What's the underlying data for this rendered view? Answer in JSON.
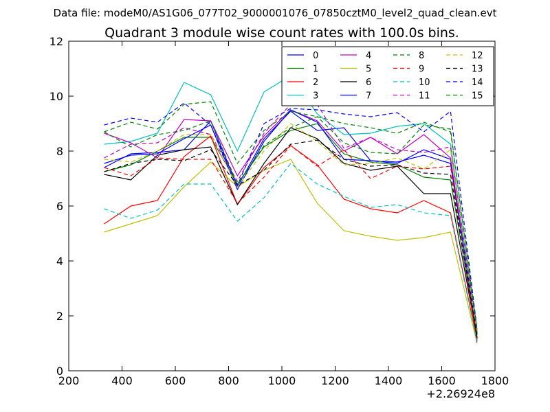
{
  "chart_data": {
    "type": "line",
    "suptitle": "Data file: modeM0/AS1G06_077T02_9000001076_07850cztM0_level2_quad_clean.evt",
    "title": "Quadrant 3 module wise count rates with 100.0s bins.",
    "xlabel": "",
    "ylabel": "",
    "x_offset_label": "+2.26924e8",
    "xlim": [
      200,
      1800
    ],
    "ylim": [
      0,
      12
    ],
    "xticks": [
      200,
      400,
      600,
      800,
      1000,
      1200,
      1400,
      1600,
      1800
    ],
    "yticks": [
      0,
      2,
      4,
      6,
      8,
      10,
      12
    ],
    "x": [
      333,
      433,
      533,
      633,
      733,
      833,
      933,
      1033,
      1133,
      1233,
      1333,
      1433,
      1533,
      1633,
      1733
    ],
    "series": [
      {
        "name": "0",
        "color": "#0000ff",
        "dash": "solid",
        "values": [
          7.4,
          7.9,
          7.95,
          8.05,
          9.1,
          6.7,
          8.45,
          9.45,
          8.75,
          8.85,
          7.65,
          7.55,
          8.05,
          7.7,
          1.3
        ]
      },
      {
        "name": "1",
        "color": "#008000",
        "dash": "solid",
        "values": [
          7.25,
          7.5,
          8.0,
          8.5,
          8.5,
          6.8,
          8.15,
          8.75,
          9.0,
          7.9,
          7.6,
          7.5,
          7.05,
          6.95,
          1.2
        ]
      },
      {
        "name": "2",
        "color": "#ff0000",
        "dash": "solid",
        "values": [
          5.35,
          6.0,
          6.2,
          7.8,
          8.55,
          6.05,
          7.4,
          8.2,
          7.5,
          6.25,
          5.9,
          5.75,
          6.2,
          5.75,
          1.1
        ]
      },
      {
        "name": "3",
        "color": "#00bfbf",
        "dash": "solid",
        "values": [
          8.25,
          8.35,
          8.65,
          10.5,
          10.05,
          8.0,
          10.15,
          10.75,
          9.35,
          8.6,
          8.65,
          8.9,
          9.0,
          8.25,
          1.25
        ]
      },
      {
        "name": "4",
        "color": "#bf00bf",
        "dash": "solid",
        "values": [
          8.65,
          8.3,
          7.75,
          9.15,
          9.1,
          7.1,
          8.55,
          9.5,
          9.1,
          8.0,
          8.5,
          7.9,
          8.6,
          7.75,
          1.15
        ]
      },
      {
        "name": "5",
        "color": "#bfbf00",
        "dash": "solid",
        "values": [
          5.05,
          5.35,
          5.65,
          6.7,
          7.6,
          6.7,
          7.3,
          7.7,
          6.1,
          5.1,
          4.9,
          4.75,
          4.85,
          5.05,
          1.0
        ]
      },
      {
        "name": "6",
        "color": "#000000",
        "dash": "solid",
        "values": [
          7.15,
          6.95,
          7.85,
          8.05,
          8.15,
          6.05,
          7.55,
          8.85,
          8.45,
          7.55,
          7.3,
          7.45,
          6.45,
          6.45,
          1.2
        ]
      },
      {
        "name": "7",
        "color": "#0000ff",
        "dash": "solid",
        "values": [
          7.55,
          7.85,
          7.9,
          8.45,
          8.95,
          6.6,
          8.35,
          9.5,
          9.05,
          7.7,
          7.65,
          7.6,
          7.85,
          7.55,
          1.35
        ]
      },
      {
        "name": "8",
        "color": "#008000",
        "dash": "dashed",
        "values": [
          8.7,
          9.05,
          8.8,
          9.7,
          9.8,
          7.55,
          8.75,
          9.45,
          9.25,
          9.0,
          8.85,
          8.65,
          9.05,
          8.7,
          1.5
        ]
      },
      {
        "name": "9",
        "color": "#ff0000",
        "dash": "dashed",
        "values": [
          7.4,
          7.1,
          7.75,
          7.7,
          7.7,
          6.1,
          7.05,
          8.2,
          7.45,
          8.05,
          7.0,
          7.45,
          7.35,
          7.45,
          0.95
        ]
      },
      {
        "name": "10",
        "color": "#00bfbf",
        "dash": "dashed",
        "values": [
          5.9,
          5.55,
          5.85,
          6.8,
          6.8,
          5.45,
          6.3,
          7.55,
          6.8,
          6.35,
          5.95,
          6.05,
          5.75,
          5.65,
          1.05
        ]
      },
      {
        "name": "11",
        "color": "#bf00bf",
        "dash": "dashed",
        "values": [
          7.75,
          8.25,
          8.3,
          8.85,
          8.6,
          6.9,
          8.65,
          9.7,
          9.7,
          8.1,
          8.5,
          8.05,
          7.95,
          8.15,
          1.4
        ]
      },
      {
        "name": "12",
        "color": "#bfbf00",
        "dash": "dashed",
        "values": [
          7.7,
          7.6,
          8.0,
          8.6,
          8.6,
          6.7,
          8.0,
          9.0,
          8.35,
          7.5,
          7.55,
          7.75,
          7.35,
          8.05,
          1.3
        ]
      },
      {
        "name": "13",
        "color": "#000000",
        "dash": "dashed",
        "values": [
          7.25,
          7.55,
          7.7,
          7.65,
          8.05,
          6.75,
          7.3,
          8.25,
          8.4,
          7.7,
          7.45,
          7.5,
          7.2,
          7.15,
          1.25
        ]
      },
      {
        "name": "14",
        "color": "#0000ff",
        "dash": "dashed",
        "values": [
          8.95,
          9.2,
          9.05,
          9.75,
          8.95,
          6.75,
          9.0,
          9.55,
          9.5,
          9.35,
          9.25,
          9.4,
          8.7,
          9.45,
          1.5
        ]
      },
      {
        "name": "15",
        "color": "#008000",
        "dash": "dashed",
        "values": [
          8.7,
          8.15,
          8.6,
          8.75,
          9.1,
          6.8,
          8.2,
          8.85,
          9.25,
          8.3,
          7.95,
          7.9,
          8.95,
          8.8,
          1.4
        ]
      }
    ],
    "legend": {
      "placement": "top-right",
      "columns": 4
    },
    "grid": false
  }
}
